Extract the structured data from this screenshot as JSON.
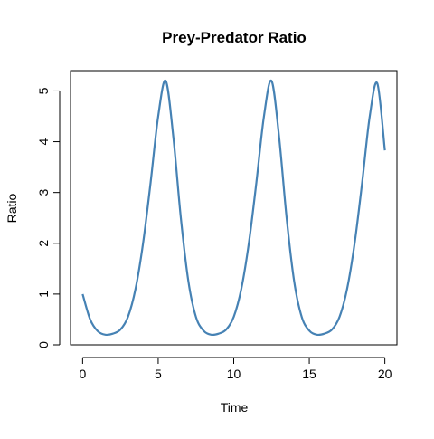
{
  "chart_data": {
    "type": "line",
    "title": "Prey-Predator Ratio",
    "xlabel": "Time",
    "ylabel": "Ratio",
    "x": [
      0,
      0.5,
      1,
      1.5,
      2,
      2.5,
      3,
      3.5,
      4,
      4.5,
      5,
      5.5,
      6,
      6.5,
      7,
      7.5,
      8,
      8.5,
      9,
      9.5,
      10,
      10.5,
      11,
      11.5,
      12,
      12.5,
      13,
      13.5,
      14,
      14.5,
      15,
      15.5,
      16,
      16.5,
      17,
      17.5,
      18,
      18.5,
      19,
      19.5,
      20
    ],
    "series": [
      {
        "name": "Ratio",
        "color": "#4682b4",
        "values": [
          1,
          0.5,
          0.27,
          0.2,
          0.22,
          0.3,
          0.55,
          1.1,
          2.0,
          3.2,
          4.5,
          5.2,
          4.1,
          2.5,
          1.25,
          0.55,
          0.28,
          0.2,
          0.22,
          0.3,
          0.55,
          1.1,
          2.0,
          3.2,
          4.5,
          5.2,
          4.1,
          2.5,
          1.25,
          0.55,
          0.28,
          0.2,
          0.22,
          0.3,
          0.55,
          1.1,
          2.0,
          3.2,
          4.5,
          5.15,
          3.83
        ]
      }
    ],
    "xlim": [
      -0.8,
      20.8
    ],
    "ylim": [
      0,
      5.4
    ],
    "xticks": [
      0,
      5,
      10,
      15,
      20
    ],
    "yticks": [
      0,
      1,
      2,
      3,
      4,
      5
    ]
  }
}
